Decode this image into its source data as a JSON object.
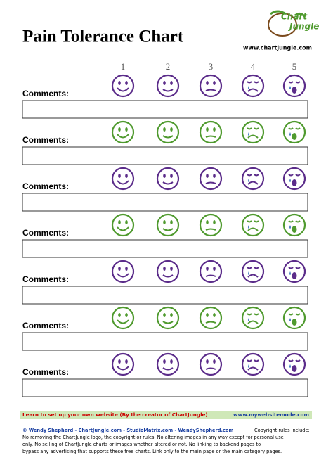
{
  "header": {
    "title": "Pain Tolerance Chart",
    "logo": [
      "Chart",
      "Jungle"
    ],
    "url": "www.chartjungle.com"
  },
  "scale": [
    "1",
    "2",
    "3",
    "4",
    "5"
  ],
  "rows": [
    {
      "label": "Comments:"
    },
    {
      "label": "Comments:"
    },
    {
      "label": "Comments:"
    },
    {
      "label": "Comments:"
    },
    {
      "label": "Comments:"
    },
    {
      "label": "Comments:"
    },
    {
      "label": "Comments:"
    }
  ],
  "banner": {
    "text": "Learn to set up your own website (By the creator of ChartJungle)",
    "url": "www.mywebsitemode.com"
  },
  "footer": {
    "credits": "© Wendy Shepherd - ChartJungle.com - StudioMatrix.com - WendyShepherd.com",
    "rules_title": "Copyright rules include:",
    "lines": [
      "No removing the ChartJungle logo, the copyright or rules. No altering images in any way except for personal use",
      "only. No selling of ChartJungle charts or images whether altered or not. No linking to backend pages to",
      "bypass any advertising that supports these free charts. Link only to the main page or the main category pages."
    ]
  }
}
